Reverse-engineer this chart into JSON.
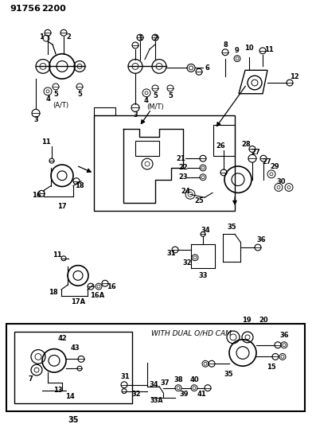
{
  "background_color": "#ffffff",
  "fig_width": 3.92,
  "fig_height": 5.33,
  "dpi": 100,
  "header1": "91756",
  "header2": "2200",
  "bottom_box_label": "WITH DUAL O/HD CAM",
  "inner_box_label": "35",
  "at_label": "(A/T)",
  "mt_label": "(M/T)"
}
